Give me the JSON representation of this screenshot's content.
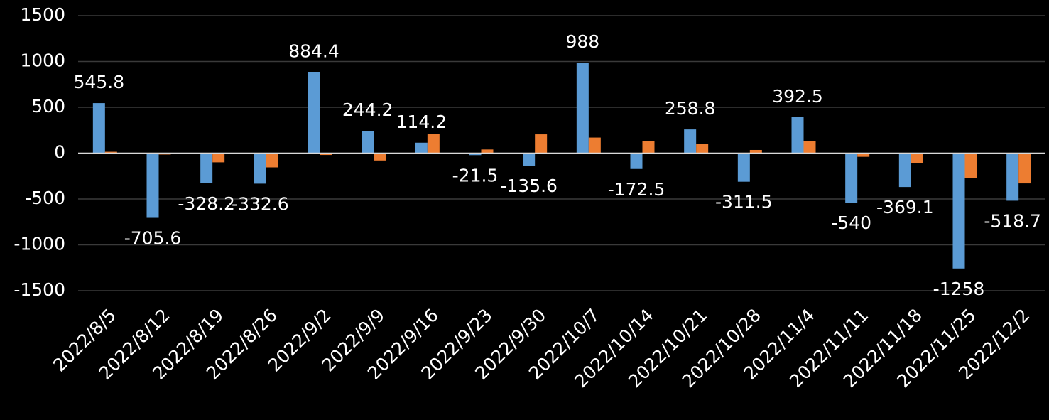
{
  "chart_data": {
    "type": "bar",
    "categories": [
      "2022/8/5",
      "2022/8/12",
      "2022/8/19",
      "2022/8/26",
      "2022/9/2",
      "2022/9/9",
      "2022/9/16",
      "2022/9/23",
      "2022/9/30",
      "2022/10/7",
      "2022/10/14",
      "2022/10/21",
      "2022/10/28",
      "2022/11/4",
      "2022/11/11",
      "2022/11/18",
      "2022/11/25",
      "2022/12/2"
    ],
    "series": [
      {
        "color": "#5b9bd5",
        "values": [
          545.8,
          -705.6,
          -328.2,
          -332.6,
          884.4,
          244.2,
          114.2,
          -21.5,
          -135.6,
          988,
          -172.5,
          258.8,
          -311.5,
          392.5,
          -540,
          -369.1,
          -1258,
          -518.7
        ]
      },
      {
        "color": "#ed7d31",
        "values": [
          15,
          -15,
          -100,
          -155,
          -20,
          -80,
          210,
          40,
          205,
          170,
          135,
          100,
          35,
          135,
          -40,
          -105,
          -275,
          -330
        ]
      }
    ],
    "data_labels_series": 0,
    "ylim": [
      -1500,
      1500
    ],
    "yticks": [
      -1500,
      -1000,
      -500,
      0,
      500,
      1000,
      1500
    ],
    "grid": true
  }
}
